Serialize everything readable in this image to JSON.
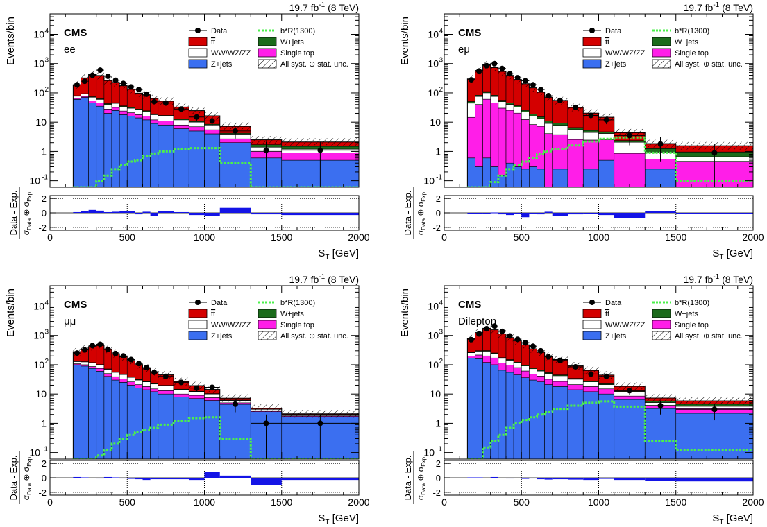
{
  "chart_data": [
    {
      "type": "bar",
      "channel": "ee",
      "experiment": "CMS",
      "lumi": "19.7 fb",
      "lumi_exp": "-1",
      "energy": "(8 TeV)",
      "ylabel": "Events/bin",
      "xlabel": "S",
      "xlabel_sub": "T",
      "xlabel_unit": "[GeV]",
      "xlim": [
        0,
        2000
      ],
      "ylim": [
        0.06,
        50000
      ],
      "yscale": "log",
      "grid": false,
      "legend_placement": "top",
      "ratio_ylabel": "Data - Exp.",
      "ratio_ylim": [
        -2.4,
        2.4
      ],
      "ratio_yticks": [
        "2",
        "0",
        "-2"
      ],
      "xtick_labels": [
        "0",
        "500",
        "1000",
        "1500",
        "2000"
      ],
      "legend": {
        "data": "Data",
        "ttbar": "tt",
        "diboson": "WW/WZ/ZZ",
        "zjets": "Z+jets",
        "signal": "b*R(1300)",
        "wjets": "W+jets",
        "singletop": "Single top",
        "unc": "All syst. ⊕ stat. unc."
      },
      "bin_edges": [
        150,
        200,
        250,
        300,
        350,
        400,
        450,
        500,
        550,
        600,
        650,
        700,
        800,
        900,
        1000,
        1100,
        1300,
        1500,
        2000
      ],
      "series": [
        {
          "key": "zjets",
          "values": [
            60,
            70,
            45,
            35,
            20,
            25,
            18,
            16,
            14,
            12,
            9,
            8,
            6,
            5,
            4,
            2,
            0.6,
            0.5
          ]
        },
        {
          "key": "singletop",
          "values": [
            5,
            6,
            8,
            10,
            8,
            7,
            6,
            5,
            4,
            4,
            3,
            3,
            2,
            2,
            1.5,
            0.7,
            0.4,
            0.4
          ]
        },
        {
          "key": "diboson",
          "values": [
            12,
            15,
            18,
            15,
            12,
            12,
            10,
            9,
            8,
            7,
            6,
            5,
            4,
            3,
            2.5,
            1.2,
            0.4,
            0.3
          ]
        },
        {
          "key": "wjets",
          "values": [
            3,
            3,
            3,
            3,
            3,
            2,
            2,
            2,
            2,
            1.5,
            1.2,
            1,
            0.8,
            0.6,
            0.5,
            0.3,
            0.3,
            0.3
          ]
        },
        {
          "key": "ttbar",
          "values": [
            110,
            230,
            350,
            330,
            220,
            180,
            140,
            100,
            70,
            60,
            45,
            35,
            20,
            14,
            8,
            3,
            0.8,
            0.6
          ]
        }
      ],
      "signal_values": [
        0.001,
        0.002,
        0.06,
        0.1,
        0.15,
        0.25,
        0.35,
        0.45,
        0.5,
        0.7,
        0.85,
        1,
        1.2,
        1.3,
        1.3,
        0.4,
        0.001,
        0.001
      ],
      "data_points": [
        190,
        250,
        400,
        600,
        370,
        270,
        210,
        160,
        130,
        90,
        50,
        45,
        28,
        15,
        11,
        5,
        1.1,
        1.1
      ],
      "ratio_values": [
        0.1,
        0.2,
        0.4,
        0.3,
        0.1,
        0.15,
        0.2,
        0.25,
        -0.2,
        0.15,
        -0.45,
        0.2,
        0.1,
        -0.3,
        -0.4,
        0.7,
        -0.2,
        -0.3
      ]
    },
    {
      "type": "bar",
      "channel": "eμ",
      "experiment": "CMS",
      "lumi": "19.7 fb",
      "lumi_exp": "-1",
      "energy": "(8 TeV)",
      "ylabel": "Events/bin",
      "xlabel": "S",
      "xlabel_sub": "T",
      "xlabel_unit": "[GeV]",
      "xlim": [
        0,
        2000
      ],
      "ylim": [
        0.06,
        50000
      ],
      "yscale": "log",
      "grid": false,
      "legend_placement": "top",
      "ratio_ylabel": "Data - Exp.",
      "ratio_ylim": [
        -2.4,
        2.4
      ],
      "ratio_yticks": [
        "2",
        "0",
        "-2"
      ],
      "xtick_labels": [
        "0",
        "500",
        "1000",
        "1500",
        "2000"
      ],
      "legend": {
        "data": "Data",
        "ttbar": "tt",
        "diboson": "WW/WZ/ZZ",
        "zjets": "Z+jets",
        "signal": "b*R(1300)",
        "wjets": "W+jets",
        "singletop": "Single top",
        "unc": "All syst. ⊕ stat. unc."
      },
      "bin_edges": [
        150,
        200,
        250,
        300,
        350,
        400,
        450,
        500,
        550,
        600,
        650,
        700,
        800,
        900,
        1000,
        1100,
        1300,
        1500,
        2000
      ],
      "series": [
        {
          "key": "zjets",
          "values": [
            0.6,
            0.3,
            0.6,
            0.3,
            0.15,
            0.4,
            0.3,
            0.25,
            0.3,
            0.25,
            0.06,
            0.25,
            0.06,
            0.25,
            0.5,
            0.06,
            0.25,
            0.06
          ]
        },
        {
          "key": "singletop",
          "values": [
            14,
            40,
            60,
            45,
            30,
            25,
            20,
            12,
            8,
            7,
            4,
            3.5,
            2.5,
            2.2,
            2,
            0.8,
            0.3,
            0.4
          ]
        },
        {
          "key": "diboson",
          "values": [
            30,
            35,
            40,
            30,
            20,
            15,
            12,
            10,
            8,
            6,
            5,
            4,
            3,
            2,
            1.6,
            1.2,
            0.4,
            0.2
          ]
        },
        {
          "key": "wjets",
          "values": [
            6,
            8,
            10,
            8,
            6,
            5,
            4,
            3,
            2.5,
            2,
            1.8,
            1.5,
            1,
            0.8,
            0.6,
            0.3,
            0.3,
            0.3
          ]
        },
        {
          "key": "ttbar",
          "values": [
            250,
            500,
            800,
            650,
            480,
            350,
            250,
            180,
            130,
            90,
            60,
            45,
            25,
            15,
            10,
            2,
            0.6,
            0.6
          ]
        }
      ],
      "signal_values": [
        0.001,
        0.001,
        0.05,
        0.09,
        0.15,
        0.25,
        0.35,
        0.45,
        0.6,
        0.8,
        1,
        1.2,
        1.6,
        2.2,
        2.7,
        3,
        0.9,
        0.1
      ],
      "data_points": [
        280,
        560,
        850,
        1000,
        680,
        450,
        330,
        260,
        190,
        130,
        80,
        55,
        32,
        17,
        12,
        3.5,
        1.8,
        0.9
      ],
      "ratio_values": [
        0,
        -0.1,
        -0.1,
        0.05,
        -0.2,
        -0.3,
        -0.15,
        -0.6,
        -0.1,
        -0.2,
        0.15,
        -0.4,
        -0.2,
        -0.1,
        -0.3,
        -0.7,
        0.2,
        -0.1
      ]
    },
    {
      "type": "bar",
      "channel": "μμ",
      "experiment": "CMS",
      "lumi": "19.7 fb",
      "lumi_exp": "-1",
      "energy": "(8 TeV)",
      "ylabel": "Events/bin",
      "xlabel": "S",
      "xlabel_sub": "T",
      "xlabel_unit": "[GeV]",
      "xlim": [
        0,
        2000
      ],
      "ylim": [
        0.06,
        50000
      ],
      "yscale": "log",
      "grid": false,
      "legend_placement": "top",
      "ratio_ylabel": "Data - Exp.",
      "ratio_ylim": [
        -2.4,
        2.4
      ],
      "ratio_yticks": [
        "2",
        "0",
        "-2"
      ],
      "xtick_labels": [
        "0",
        "500",
        "1000",
        "1500",
        "2000"
      ],
      "legend": {
        "data": "Data",
        "ttbar": "tt",
        "diboson": "WW/WZ/ZZ",
        "zjets": "Z+jets",
        "signal": "b*R(1300)",
        "wjets": "W+jets",
        "singletop": "Single top",
        "unc": "All syst. ⊕ stat. unc."
      },
      "bin_edges": [
        150,
        200,
        250,
        300,
        350,
        400,
        450,
        500,
        550,
        600,
        650,
        700,
        800,
        900,
        1000,
        1100,
        1300,
        1500,
        2000
      ],
      "series": [
        {
          "key": "zjets",
          "values": [
            100,
            90,
            75,
            60,
            40,
            30,
            25,
            20,
            16,
            14,
            12,
            10,
            8,
            7,
            6,
            4.5,
            2.5,
            1.7
          ]
        },
        {
          "key": "singletop",
          "values": [
            8,
            10,
            12,
            15,
            10,
            9,
            8,
            6,
            5,
            4,
            3,
            3,
            2,
            2,
            1.5,
            0.5,
            0.2,
            0.1
          ]
        },
        {
          "key": "diboson",
          "values": [
            20,
            25,
            30,
            25,
            20,
            16,
            13,
            11,
            9,
            8,
            7,
            6,
            4,
            3,
            2.5,
            1,
            0.3,
            0.1
          ]
        },
        {
          "key": "wjets",
          "values": [
            2,
            2,
            2,
            2,
            2,
            2,
            1.5,
            1.5,
            1.2,
            1,
            1,
            0.8,
            0.6,
            0.4,
            0.3,
            0.2,
            0.1,
            0.1
          ]
        },
        {
          "key": "ttbar",
          "values": [
            150,
            220,
            300,
            350,
            260,
            180,
            140,
            100,
            70,
            50,
            35,
            25,
            12,
            7,
            4,
            1,
            0.2,
            0.1
          ]
        }
      ],
      "signal_values": [
        0.001,
        0.001,
        0.05,
        0.08,
        0.12,
        0.2,
        0.3,
        0.4,
        0.5,
        0.6,
        0.7,
        0.9,
        1.2,
        1.5,
        1.6,
        0.3,
        0.06,
        0.001
      ],
      "data_points": [
        250,
        320,
        450,
        500,
        330,
        240,
        200,
        150,
        110,
        80,
        55,
        40,
        25,
        16,
        17,
        4.5,
        1,
        1
      ],
      "ratio_values": [
        0.1,
        0.05,
        -0.05,
        -0.1,
        0.1,
        0.05,
        -0.1,
        -0.15,
        -0.2,
        -0.3,
        -0.2,
        -0.2,
        -0.2,
        -0.3,
        0.8,
        0.3,
        -1,
        -0.3
      ]
    },
    {
      "type": "bar",
      "channel": "Dilepton",
      "experiment": "CMS",
      "lumi": "19.7 fb",
      "lumi_exp": "-1",
      "energy": "(8 TeV)",
      "ylabel": "Events/bin",
      "xlabel": "S",
      "xlabel_sub": "T",
      "xlabel_unit": "[GeV]",
      "xlim": [
        0,
        2000
      ],
      "ylim": [
        0.06,
        50000
      ],
      "yscale": "log",
      "grid": false,
      "legend_placement": "top",
      "ratio_ylabel": "Data - Exp.",
      "ratio_ylim": [
        -2.4,
        2.4
      ],
      "ratio_yticks": [
        "2",
        "0",
        "-2"
      ],
      "xtick_labels": [
        "0",
        "500",
        "1000",
        "1500",
        "2000"
      ],
      "legend": {
        "data": "Data",
        "ttbar": "tt",
        "diboson": "WW/WZ/ZZ",
        "zjets": "Z+jets",
        "signal": "b*R(1300)",
        "wjets": "W+jets",
        "singletop": "Single top",
        "unc": "All syst. ⊕ stat. unc."
      },
      "bin_edges": [
        150,
        200,
        250,
        300,
        350,
        400,
        450,
        500,
        550,
        600,
        650,
        700,
        800,
        900,
        1000,
        1100,
        1300,
        1500,
        2000
      ],
      "series": [
        {
          "key": "zjets",
          "values": [
            170,
            160,
            120,
            100,
            65,
            55,
            45,
            36,
            30,
            26,
            21,
            18,
            14,
            12,
            10,
            6.5,
            3.2,
            2.2
          ]
        },
        {
          "key": "singletop",
          "values": [
            27,
            55,
            80,
            70,
            50,
            42,
            35,
            25,
            18,
            15,
            11,
            9,
            7,
            6,
            5,
            2,
            0.9,
            1
          ]
        },
        {
          "key": "diboson",
          "values": [
            60,
            75,
            90,
            70,
            50,
            45,
            35,
            30,
            25,
            20,
            18,
            15,
            11,
            8,
            6,
            3,
            1,
            0.6
          ]
        },
        {
          "key": "wjets",
          "values": [
            10,
            12,
            15,
            12,
            10,
            8,
            7,
            6,
            5,
            4,
            3.5,
            3,
            2.3,
            1.8,
            1.4,
            0.8,
            0.7,
            0.7
          ]
        },
        {
          "key": "ttbar",
          "values": [
            510,
            950,
            1450,
            1300,
            950,
            700,
            530,
            380,
            270,
            200,
            140,
            105,
            57,
            36,
            22,
            6,
            1.5,
            1.3
          ]
        }
      ],
      "signal_values": [
        0.001,
        0.001,
        0.15,
        0.25,
        0.4,
        0.7,
        1,
        1.3,
        1.6,
        2,
        2.5,
        3.1,
        4,
        5,
        5.6,
        3.7,
        0.25,
        0.12
      ],
      "data_points": [
        720,
        1130,
        1700,
        2100,
        1380,
        960,
        740,
        570,
        430,
        300,
        185,
        140,
        85,
        48,
        40,
        13,
        4,
        3
      ],
      "ratio_values": [
        0.05,
        0.05,
        0,
        0.1,
        0,
        -0.1,
        -0.05,
        -0.15,
        -0.1,
        -0.2,
        -0.25,
        -0.2,
        -0.25,
        -0.3,
        -0.15,
        -0.3,
        -0.4,
        -0.5
      ]
    }
  ]
}
